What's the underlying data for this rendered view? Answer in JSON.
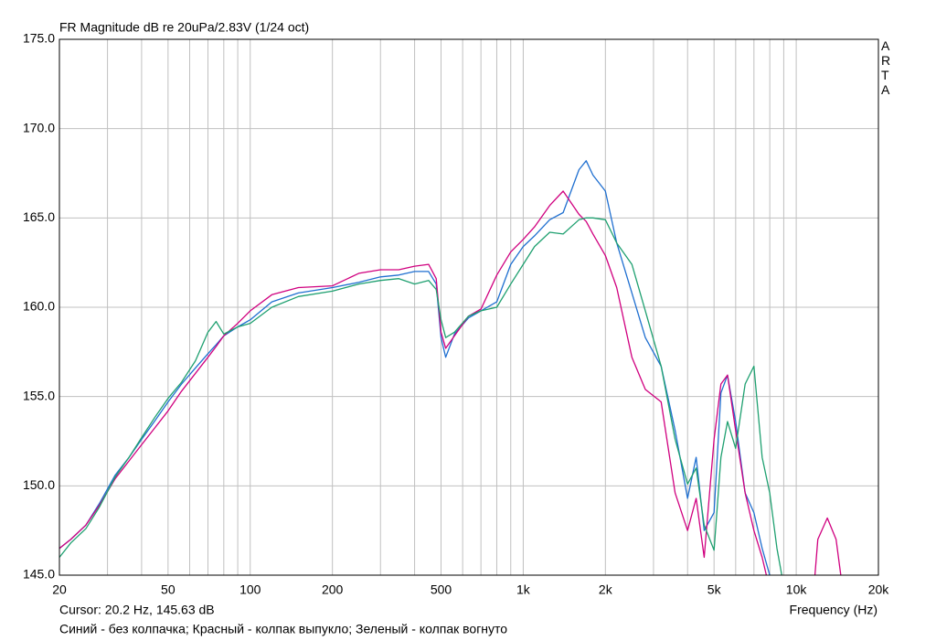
{
  "chart_data": {
    "type": "line",
    "title": "FR Magnitude dB re 20uPa/2.83V (1/24 oct)",
    "brand": "ARTA",
    "cursor": "Cursor: 20.2 Hz, 145.63 dB",
    "x_label": "Frequency (Hz)",
    "note": "Синий - без колпачка; Красный - колпак выпукло; Зеленый - колпак вогнуто",
    "x_log": true,
    "xlim": [
      20,
      20000
    ],
    "ylim": [
      145,
      175
    ],
    "xticks": [
      20,
      50,
      100,
      200,
      500,
      {
        "value": 1000,
        "label": "1k"
      },
      {
        "value": 2000,
        "label": "2k"
      },
      {
        "value": 5000,
        "label": "5k"
      },
      {
        "value": 10000,
        "label": "10k"
      },
      {
        "value": 20000,
        "label": "20k"
      }
    ],
    "x_minor_grid": [
      30,
      40,
      60,
      70,
      80,
      90,
      300,
      400,
      600,
      700,
      800,
      900,
      3000,
      4000,
      6000,
      7000,
      8000,
      9000
    ],
    "yticks": [
      {
        "value": 145,
        "label": "145.0"
      },
      {
        "value": 150,
        "label": "150.0"
      },
      {
        "value": 155,
        "label": "155.0"
      },
      {
        "value": 160,
        "label": "160.0"
      },
      {
        "value": 165,
        "label": "165.0"
      },
      {
        "value": 170,
        "label": "170.0"
      },
      {
        "value": 175,
        "label": "175.0"
      }
    ],
    "grid": true,
    "x": [
      20,
      22,
      25,
      28,
      32,
      36,
      40,
      45,
      50,
      56,
      63,
      70,
      75,
      80,
      90,
      100,
      120,
      150,
      200,
      250,
      300,
      350,
      400,
      450,
      480,
      500,
      520,
      560,
      630,
      700,
      800,
      900,
      1000,
      1100,
      1250,
      1400,
      1600,
      1700,
      1800,
      2000,
      2200,
      2500,
      2800,
      3200,
      3600,
      4000,
      4300,
      4600,
      5000,
      5300,
      5600,
      6000,
      6500,
      7000,
      7500,
      8000,
      8500,
      9000,
      11500,
      12000,
      13000,
      14000,
      15000
    ],
    "series": [
      {
        "color": "#1f6fd0",
        "values": [
          146.5,
          147.0,
          147.8,
          149.0,
          150.6,
          151.6,
          152.6,
          153.7,
          154.7,
          155.7,
          156.6,
          157.4,
          157.9,
          158.4,
          158.9,
          159.3,
          160.3,
          160.8,
          161.1,
          161.4,
          161.7,
          161.8,
          162.0,
          162.0,
          161.3,
          158.3,
          157.2,
          158.5,
          159.4,
          159.8,
          160.3,
          162.4,
          163.4,
          164.0,
          164.9,
          165.3,
          167.7,
          168.2,
          167.4,
          166.5,
          163.6,
          160.8,
          158.3,
          156.7,
          153.1,
          149.3,
          151.6,
          147.5,
          148.5,
          155.2,
          156.2,
          153.6,
          149.6,
          148.5,
          146.5,
          145.0,
          144.4,
          null,
          null,
          null,
          null,
          null,
          null
        ]
      },
      {
        "color": "#d0007f",
        "values": [
          146.5,
          147.0,
          147.8,
          148.9,
          150.4,
          151.4,
          152.3,
          153.3,
          154.2,
          155.3,
          156.3,
          157.2,
          157.8,
          158.4,
          159.1,
          159.8,
          160.7,
          161.1,
          161.2,
          161.9,
          162.1,
          162.1,
          162.3,
          162.4,
          161.6,
          158.6,
          157.7,
          158.4,
          159.5,
          159.9,
          161.8,
          163.1,
          163.8,
          164.5,
          165.7,
          166.5,
          165.2,
          164.8,
          164.1,
          162.9,
          161.1,
          157.2,
          155.4,
          154.7,
          149.6,
          147.5,
          149.3,
          146.0,
          152.6,
          155.7,
          156.2,
          153.1,
          149.6,
          147.5,
          146.0,
          144.2,
          null,
          null,
          143.5,
          147.0,
          148.2,
          147.0,
          143.5
        ]
      },
      {
        "color": "#1fa070",
        "values": [
          146.0,
          146.8,
          147.6,
          148.8,
          150.5,
          151.6,
          152.7,
          153.9,
          154.9,
          155.8,
          157.0,
          158.6,
          159.2,
          158.5,
          158.9,
          159.1,
          160.0,
          160.6,
          160.9,
          161.3,
          161.5,
          161.6,
          161.3,
          161.5,
          161.0,
          159.3,
          158.3,
          158.6,
          159.5,
          159.8,
          160.0,
          161.3,
          162.4,
          163.4,
          164.2,
          164.1,
          164.9,
          165.0,
          165.0,
          164.9,
          163.6,
          162.4,
          159.8,
          156.7,
          152.6,
          150.1,
          151.0,
          147.8,
          146.4,
          151.6,
          153.6,
          152.1,
          155.7,
          156.7,
          151.6,
          149.6,
          146.5,
          144.4,
          null,
          null,
          null,
          null,
          null
        ]
      }
    ]
  }
}
